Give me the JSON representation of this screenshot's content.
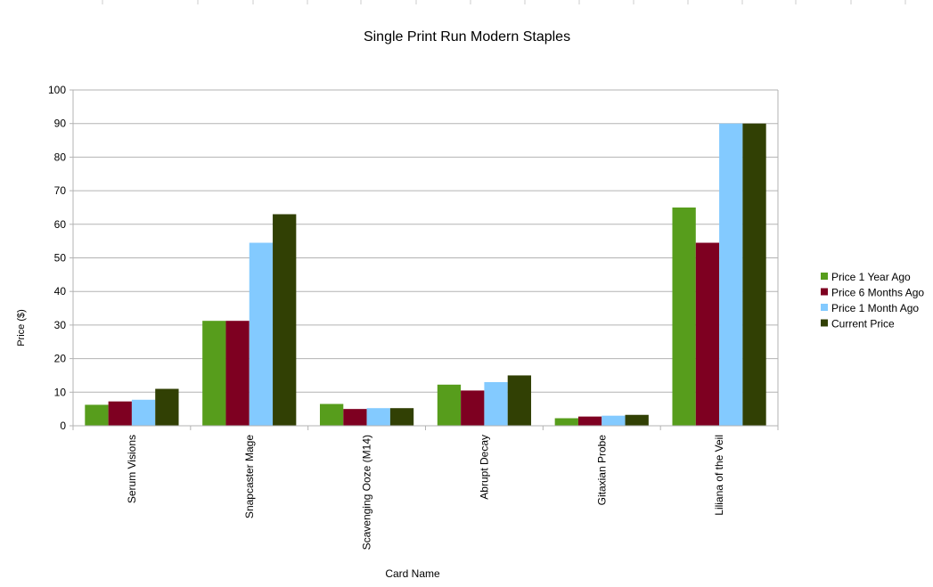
{
  "chart_data": {
    "type": "bar",
    "title": "Single Print Run Modern Staples",
    "xlabel": "Card Name",
    "ylabel": "Price ($)",
    "ylim": [
      0,
      100
    ],
    "yticks": [
      0,
      10,
      20,
      30,
      40,
      50,
      60,
      70,
      80,
      90,
      100
    ],
    "grid": true,
    "legend_position": "right",
    "categories": [
      "Serum Visions",
      "Snapcaster Mage",
      "Scavenging Ooze (M14)",
      "Abrupt Decay",
      "Gitaxian Probe",
      "Liliana of the Veil"
    ],
    "series": [
      {
        "name": "Price 1 Year Ago",
        "color": "#579d1c",
        "values": [
          6.25,
          31.25,
          6.5,
          12.25,
          2.25,
          65
        ]
      },
      {
        "name": "Price 6 Months Ago",
        "color": "#7e0021",
        "values": [
          7.25,
          31.25,
          5,
          10.5,
          2.75,
          54.5
        ]
      },
      {
        "name": "Price 1 Month Ago",
        "color": "#83caff",
        "values": [
          7.75,
          54.5,
          5.25,
          13,
          3,
          90
        ]
      },
      {
        "name": "Current Price",
        "color": "#314004",
        "values": [
          11,
          63,
          5.25,
          15,
          3.25,
          90
        ]
      }
    ]
  }
}
